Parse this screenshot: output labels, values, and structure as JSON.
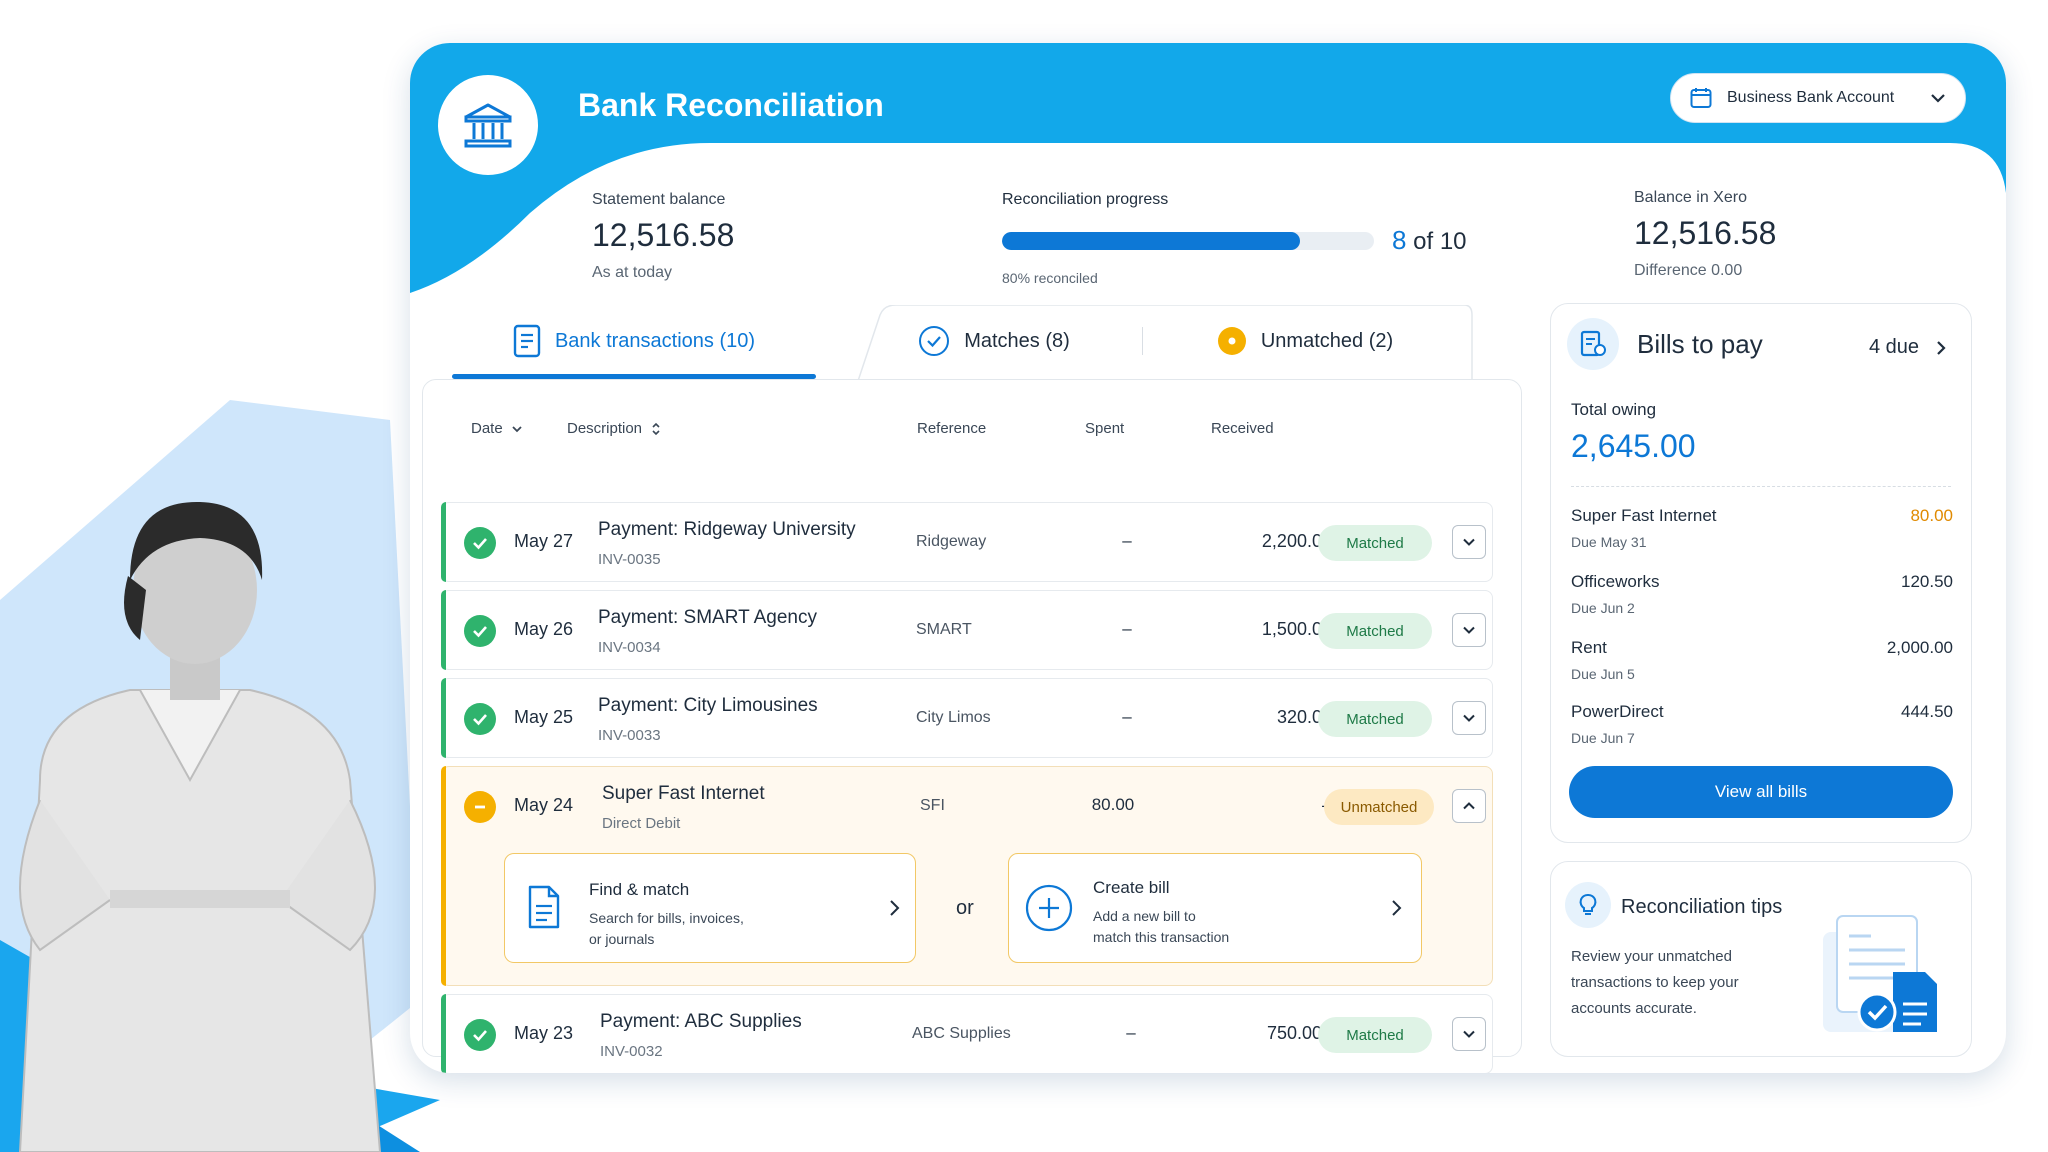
{
  "app": {
    "title": "Bank Reconciliation",
    "account_select": "Business Bank Account"
  },
  "summary": {
    "statement_label": "Statement balance",
    "statement_value": "12,516.58",
    "statement_sub": "As at today",
    "progress_label": "Reconciliation progress",
    "progress_fraction": 0.8,
    "progress_count_num": "8",
    "progress_count_rest": "of 10",
    "progress_pct": "80% reconciled",
    "xero_label": "Balance in Xero",
    "xero_value": "12,516.58",
    "xero_sub": "Difference 0.00"
  },
  "tabs": [
    {
      "label": "Bank transactions (10)",
      "active": true
    },
    {
      "label": "Matches (8)"
    },
    {
      "label": "Unmatched (2)"
    }
  ],
  "table": {
    "headers": {
      "date": "Date",
      "description": "Description",
      "reference": "Reference",
      "spent": "Spent",
      "received": "Received"
    },
    "rows": [
      {
        "date": "May 27",
        "desc": "Payment:  Ridgeway University",
        "inv": "INV-0035",
        "ref": "Ridgeway",
        "spent": "–",
        "received": "2,200.00",
        "status": "Matched"
      },
      {
        "date": "May 26",
        "desc": "Payment:  SMART Agency",
        "inv": "INV-0034",
        "ref": "SMART",
        "spent": "–",
        "received": "1,500.00",
        "status": "Matched"
      },
      {
        "date": "May 25",
        "desc": "Payment:  City Limousines",
        "inv": "INV-0033",
        "ref": "City Limos",
        "spent": "–",
        "received": "320.00",
        "status": "Matched"
      },
      {
        "date": "May 24",
        "desc": "Super Fast Internet",
        "inv": "Direct Debit",
        "ref": "SFI",
        "spent": "80.00",
        "received": "–",
        "status": "Unmatched"
      },
      {
        "date": "May 23",
        "desc": "Payment:  ABC Supplies",
        "inv": "INV-0032",
        "ref": "ABC Supplies",
        "spent": "–",
        "received": "750.00",
        "status": "Matched"
      }
    ],
    "find_match": {
      "title": "Find & match",
      "line1": "Search for bills, invoices,",
      "line2": "or journals"
    },
    "or_label": "or",
    "create_bill": {
      "title": "Create bill",
      "line1": "Add a new bill to",
      "line2": "match this transaction"
    }
  },
  "bills": {
    "title": "Bills to pay",
    "due": "4 due",
    "owing_label": "Total owing",
    "owing_value": "2,645.00",
    "items": [
      {
        "name": "Super Fast Internet",
        "due": "Due May 31",
        "amount": "80.00"
      },
      {
        "name": "Officeworks",
        "due": "Due Jun 2",
        "amount": "120.50"
      },
      {
        "name": "Rent",
        "due": "Due Jun 5",
        "amount": "2,000.00"
      },
      {
        "name": "PowerDirect",
        "due": "Due Jun 7",
        "amount": "444.50"
      }
    ],
    "view_all": "View all bills"
  },
  "tips": {
    "title": "Reconciliation tips",
    "line1": "Review your unmatched",
    "line2": "transactions to keep your",
    "line3": "accounts accurate."
  },
  "colors": {
    "brand_blue": "#0ea5e9",
    "accent_blue": "#0d78d6",
    "matched_green": "#2fb36d",
    "unmatched_amber": "#f5b000"
  }
}
